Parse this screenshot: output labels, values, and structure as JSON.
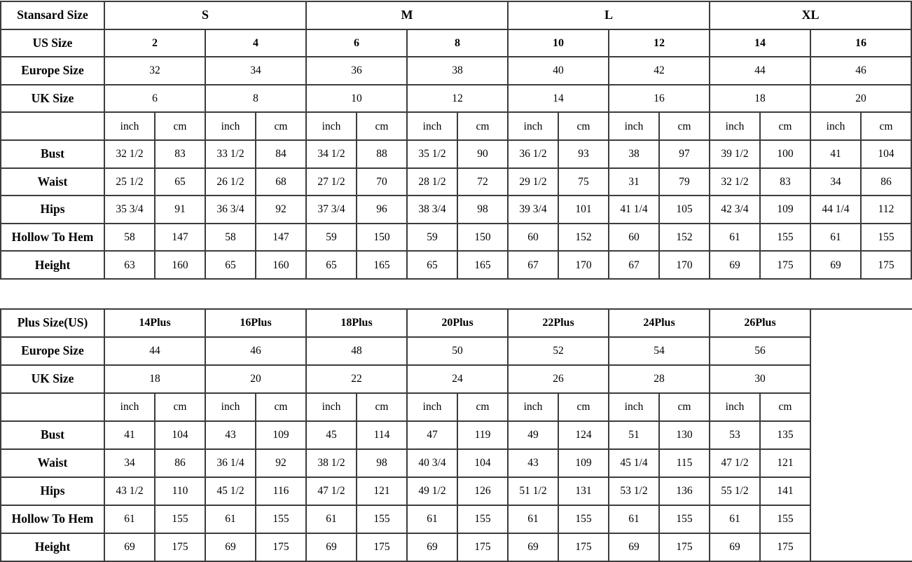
{
  "standard_table": {
    "title": "Stansard Size",
    "side_labels": {
      "us": "US Size",
      "europe": "Europe Size",
      "uk": "UK Size"
    },
    "units": [
      "inch",
      "cm"
    ],
    "sizes": [
      "S",
      "M",
      "L",
      "XL"
    ],
    "us_sizes": [
      "2",
      "4",
      "6",
      "8",
      "10",
      "12",
      "14",
      "16"
    ],
    "europe_sizes": [
      "32",
      "34",
      "36",
      "38",
      "40",
      "42",
      "44",
      "46"
    ],
    "uk_sizes": [
      "6",
      "8",
      "10",
      "12",
      "14",
      "16",
      "18",
      "20"
    ],
    "rows": [
      {
        "label": "Bust",
        "values": [
          "32 1/2",
          "83",
          "33 1/2",
          "84",
          "34 1/2",
          "88",
          "35 1/2",
          "90",
          "36 1/2",
          "93",
          "38",
          "97",
          "39 1/2",
          "100",
          "41",
          "104"
        ]
      },
      {
        "label": "Waist",
        "values": [
          "25 1/2",
          "65",
          "26 1/2",
          "68",
          "27 1/2",
          "70",
          "28 1/2",
          "72",
          "29 1/2",
          "75",
          "31",
          "79",
          "32 1/2",
          "83",
          "34",
          "86"
        ]
      },
      {
        "label": "Hips",
        "values": [
          "35 3/4",
          "91",
          "36 3/4",
          "92",
          "37 3/4",
          "96",
          "38 3/4",
          "98",
          "39 3/4",
          "101",
          "41 1/4",
          "105",
          "42 3/4",
          "109",
          "44 1/4",
          "112"
        ]
      },
      {
        "label": "Hollow To Hem",
        "values": [
          "58",
          "147",
          "58",
          "147",
          "59",
          "150",
          "59",
          "150",
          "60",
          "152",
          "60",
          "152",
          "61",
          "155",
          "61",
          "155"
        ]
      },
      {
        "label": "Height",
        "values": [
          "63",
          "160",
          "65",
          "160",
          "65",
          "165",
          "65",
          "165",
          "67",
          "170",
          "67",
          "170",
          "69",
          "175",
          "69",
          "175"
        ]
      }
    ]
  },
  "plus_table": {
    "title": "Plus Size(US)",
    "side_labels": {
      "europe": "Europe Size",
      "uk": "UK Size"
    },
    "units": [
      "inch",
      "cm"
    ],
    "sizes": [
      "14Plus",
      "16Plus",
      "18Plus",
      "20Plus",
      "22Plus",
      "24Plus",
      "26Plus"
    ],
    "europe_sizes": [
      "44",
      "46",
      "48",
      "50",
      "52",
      "54",
      "56"
    ],
    "uk_sizes": [
      "18",
      "20",
      "22",
      "24",
      "26",
      "28",
      "30"
    ],
    "rows": [
      {
        "label": "Bust",
        "values": [
          "41",
          "104",
          "43",
          "109",
          "45",
          "114",
          "47",
          "119",
          "49",
          "124",
          "51",
          "130",
          "53",
          "135"
        ]
      },
      {
        "label": "Waist",
        "values": [
          "34",
          "86",
          "36 1/4",
          "92",
          "38 1/2",
          "98",
          "40 3/4",
          "104",
          "43",
          "109",
          "45 1/4",
          "115",
          "47 1/2",
          "121"
        ]
      },
      {
        "label": "Hips",
        "values": [
          "43 1/2",
          "110",
          "45 1/2",
          "116",
          "47 1/2",
          "121",
          "49 1/2",
          "126",
          "51 1/2",
          "131",
          "53 1/2",
          "136",
          "55 1/2",
          "141"
        ]
      },
      {
        "label": "Hollow To Hem",
        "values": [
          "61",
          "155",
          "61",
          "155",
          "61",
          "155",
          "61",
          "155",
          "61",
          "155",
          "61",
          "155",
          "61",
          "155"
        ]
      },
      {
        "label": "Height",
        "values": [
          "69",
          "175",
          "69",
          "175",
          "69",
          "175",
          "69",
          "175",
          "69",
          "175",
          "69",
          "175",
          "69",
          "175"
        ]
      }
    ]
  }
}
